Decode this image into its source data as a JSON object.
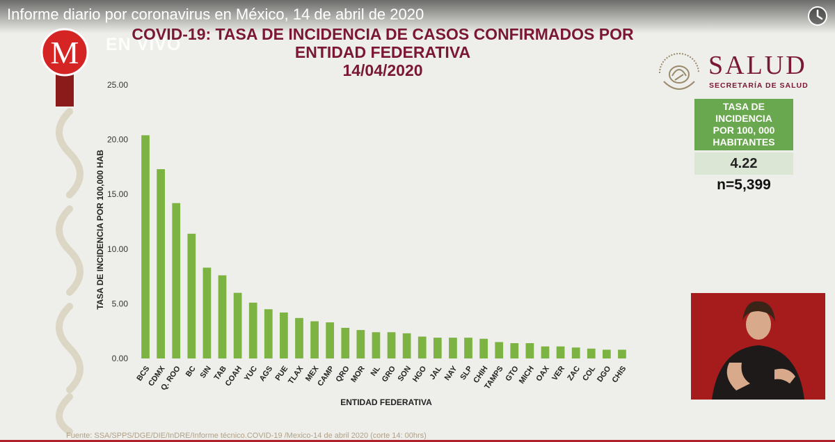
{
  "video": {
    "title": "Informe diario por coronavirus en México, 14 de abril de 2020",
    "live_label": "EN VIVO",
    "channel_logo_letter": "M",
    "watch_later_icon": "clock-icon"
  },
  "header": {
    "title_lines": [
      "COVID-19: TASA DE INCIDENCIA DE CASOS CONFIRMADOS POR",
      "ENTIDAD FEDERATIVA",
      "14/04/2020"
    ]
  },
  "salud": {
    "name": "SALUD",
    "subtitle": "SECRETARÍA DE SALUD",
    "emblem_icon": "mexico-coat-of-arms-icon"
  },
  "summary": {
    "label": "TASA DE\nINCIDENCIA\nPOR 100, 000\nHABITANTES",
    "value": "4.22",
    "n": "n=5,399"
  },
  "source": "Fuente: SSA/SPPS/DGE/DIE/InDRE/Informe técnico.COVID-19 /Mexico-14 de abril 2020 (corte 14: 00hrs)",
  "colors": {
    "bar": "#7cb342",
    "title": "#7a1735",
    "accent_red": "#b0202a",
    "rate_box": "#6aa84f"
  },
  "chart_data": {
    "type": "bar",
    "title": "COVID-19: TASA DE INCIDENCIA DE CASOS CONFIRMADOS POR ENTIDAD FEDERATIVA 14/04/2020",
    "xlabel": "ENTIDAD FEDERATIVA",
    "ylabel": "TASA DE INCIDENCIA POR 100,000 HAB",
    "ylim": [
      0,
      25
    ],
    "yticks": [
      "0.00",
      "5.00",
      "10.00",
      "15.00",
      "20.00",
      "25.00"
    ],
    "categories": [
      "BCS",
      "CDMX",
      "Q. ROO",
      "BC",
      "SIN",
      "TAB",
      "COAH",
      "YUC",
      "AGS",
      "PUE",
      "TLAX",
      "MEX",
      "CAMP",
      "QRO",
      "MOR",
      "NL",
      "GRO",
      "SON",
      "HGO",
      "JAL",
      "NAY",
      "SLP",
      "CHIH",
      "TAMPS",
      "GTO",
      "MICH",
      "OAX",
      "VER",
      "ZAC",
      "COL",
      "DGO",
      "CHIS"
    ],
    "values": [
      20.4,
      17.3,
      14.2,
      11.4,
      8.3,
      7.6,
      6.0,
      5.1,
      4.5,
      4.2,
      3.7,
      3.4,
      3.3,
      2.8,
      2.6,
      2.4,
      2.4,
      2.3,
      2.0,
      1.9,
      1.9,
      1.9,
      1.8,
      1.5,
      1.4,
      1.4,
      1.1,
      1.1,
      1.0,
      0.9,
      0.8,
      0.8
    ],
    "grid": false,
    "legend": "none"
  }
}
